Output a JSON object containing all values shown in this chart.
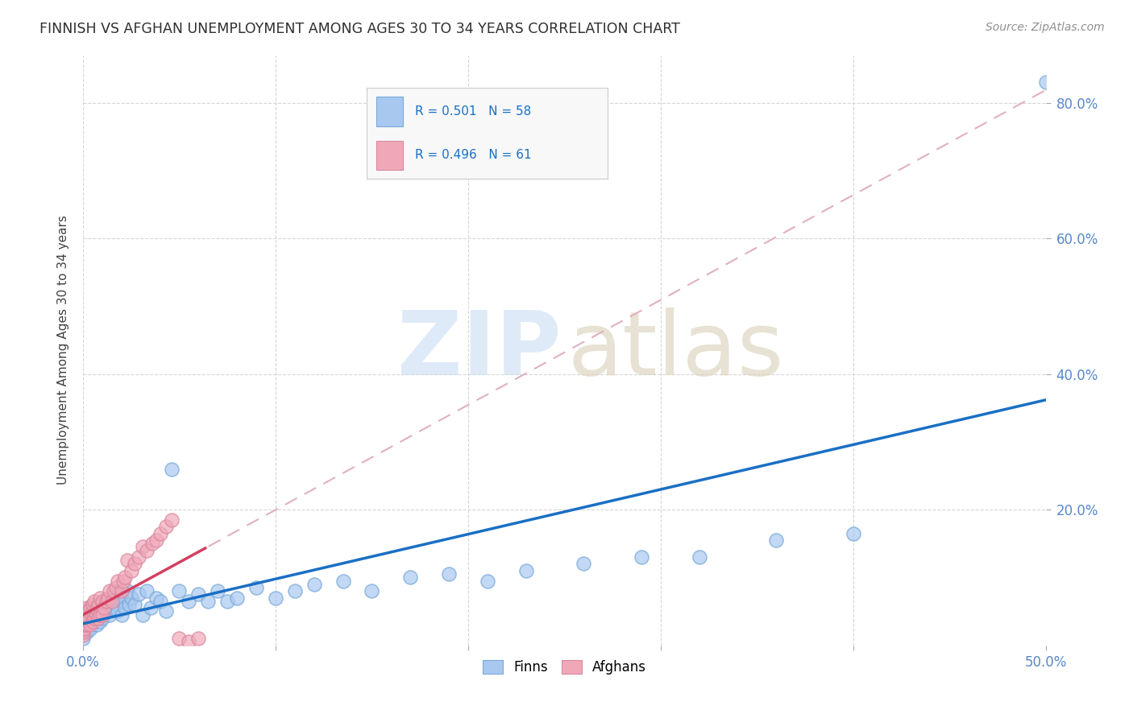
{
  "title": "FINNISH VS AFGHAN UNEMPLOYMENT AMONG AGES 30 TO 34 YEARS CORRELATION CHART",
  "source": "Source: ZipAtlas.com",
  "ylabel": "Unemployment Among Ages 30 to 34 years",
  "xlim": [
    0.0,
    0.5
  ],
  "ylim": [
    0.0,
    0.87
  ],
  "xticks": [
    0.0,
    0.1,
    0.2,
    0.3,
    0.4,
    0.5
  ],
  "yticks": [
    0.2,
    0.4,
    0.6,
    0.8
  ],
  "finn_R": 0.501,
  "finn_N": 58,
  "afghan_R": 0.496,
  "afghan_N": 61,
  "finn_color": "#a8c8f0",
  "finn_edge_color": "#7aaad8",
  "finn_line_color": "#1a6fc4",
  "afghan_color": "#f0a8b8",
  "afghan_edge_color": "#d888a0",
  "afghan_line_color": "#d44060",
  "afghan_dash_color": "#e0b0c0",
  "background_color": "#ffffff",
  "grid_color": "#cccccc",
  "title_color": "#303030",
  "tick_color": "#5588cc",
  "watermark_zip_color": "#c8dcf4",
  "watermark_atlas_color": "#d8d0b8",
  "legend_box_color": "#f8f8f8",
  "legend_border_color": "#cccccc",
  "legend_text_color": "#1a6fc4",
  "finn_scatter_x": [
    0.0,
    0.002,
    0.003,
    0.004,
    0.005,
    0.006,
    0.007,
    0.008,
    0.009,
    0.01,
    0.01,
    0.011,
    0.012,
    0.013,
    0.014,
    0.015,
    0.016,
    0.017,
    0.018,
    0.019,
    0.02,
    0.021,
    0.022,
    0.023,
    0.024,
    0.025,
    0.027,
    0.029,
    0.031,
    0.033,
    0.035,
    0.038,
    0.04,
    0.043,
    0.046,
    0.05,
    0.055,
    0.06,
    0.065,
    0.07,
    0.075,
    0.08,
    0.09,
    0.1,
    0.11,
    0.12,
    0.135,
    0.15,
    0.17,
    0.19,
    0.21,
    0.23,
    0.26,
    0.29,
    0.32,
    0.36,
    0.4,
    0.5
  ],
  "finn_scatter_y": [
    0.01,
    0.02,
    0.03,
    0.025,
    0.035,
    0.04,
    0.03,
    0.045,
    0.035,
    0.04,
    0.06,
    0.05,
    0.055,
    0.065,
    0.045,
    0.055,
    0.07,
    0.06,
    0.05,
    0.075,
    0.045,
    0.065,
    0.055,
    0.08,
    0.06,
    0.07,
    0.06,
    0.075,
    0.045,
    0.08,
    0.055,
    0.07,
    0.065,
    0.05,
    0.26,
    0.08,
    0.065,
    0.075,
    0.065,
    0.08,
    0.065,
    0.07,
    0.085,
    0.07,
    0.08,
    0.09,
    0.095,
    0.08,
    0.1,
    0.105,
    0.095,
    0.11,
    0.12,
    0.13,
    0.13,
    0.155,
    0.165,
    0.83
  ],
  "afghan_scatter_x": [
    0.0,
    0.0,
    0.0,
    0.0,
    0.0,
    0.0,
    0.0,
    0.0,
    0.0,
    0.0,
    0.0,
    0.001,
    0.001,
    0.001,
    0.001,
    0.002,
    0.002,
    0.002,
    0.002,
    0.003,
    0.003,
    0.004,
    0.004,
    0.005,
    0.005,
    0.005,
    0.006,
    0.006,
    0.007,
    0.007,
    0.008,
    0.008,
    0.009,
    0.009,
    0.01,
    0.01,
    0.011,
    0.012,
    0.013,
    0.014,
    0.015,
    0.016,
    0.017,
    0.018,
    0.02,
    0.021,
    0.022,
    0.023,
    0.025,
    0.027,
    0.029,
    0.031,
    0.033,
    0.036,
    0.038,
    0.04,
    0.043,
    0.046,
    0.05,
    0.055,
    0.06
  ],
  "afghan_scatter_y": [
    0.015,
    0.02,
    0.025,
    0.03,
    0.03,
    0.035,
    0.035,
    0.04,
    0.04,
    0.045,
    0.05,
    0.025,
    0.03,
    0.04,
    0.045,
    0.03,
    0.04,
    0.05,
    0.055,
    0.04,
    0.05,
    0.03,
    0.055,
    0.035,
    0.05,
    0.06,
    0.04,
    0.065,
    0.045,
    0.055,
    0.04,
    0.06,
    0.045,
    0.07,
    0.045,
    0.065,
    0.055,
    0.065,
    0.07,
    0.08,
    0.065,
    0.08,
    0.085,
    0.095,
    0.08,
    0.095,
    0.1,
    0.125,
    0.11,
    0.12,
    0.13,
    0.145,
    0.14,
    0.15,
    0.155,
    0.165,
    0.175,
    0.185,
    0.01,
    0.005,
    0.01
  ]
}
